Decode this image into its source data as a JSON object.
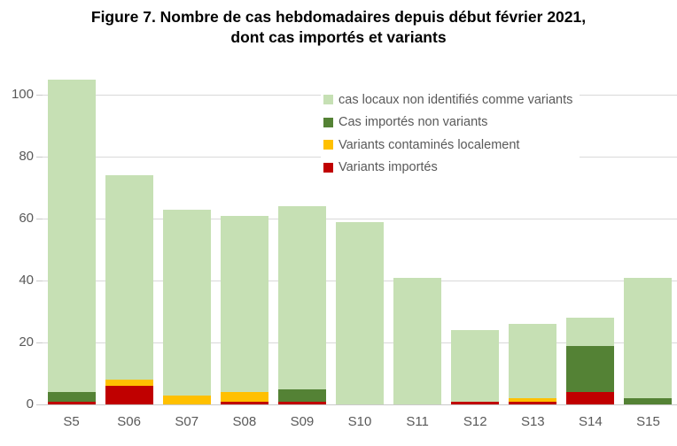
{
  "title": {
    "line1": "Figure 7. Nombre de cas hebdomadaires depuis début février 2021,",
    "line2": "dont cas importés et variants"
  },
  "colors": {
    "local_cases": "#c6e0b4",
    "imported_non_variant": "#548235",
    "variant_local": "#ffc000",
    "variant_imported": "#c00000",
    "gridline": "#d9d9d9",
    "axis_text": "#595959",
    "title_text": "#000000"
  },
  "chart_data": {
    "type": "bar",
    "stacked": true,
    "title": "Figure 7. Nombre de cas hebdomadaires depuis début février 2021, dont cas importés et variants",
    "categories": [
      "S5",
      "S06",
      "S07",
      "S08",
      "S09",
      "S10",
      "S11",
      "S12",
      "S13",
      "S14",
      "S15"
    ],
    "series": [
      {
        "name": "Variants importés",
        "color_key": "variant_imported",
        "values": [
          1,
          6,
          0,
          1,
          1,
          0,
          0,
          1,
          1,
          4,
          0
        ]
      },
      {
        "name": "Variants contaminés localement",
        "color_key": "variant_local",
        "values": [
          0,
          2,
          3,
          3,
          0,
          0,
          0,
          0,
          1,
          0,
          0
        ]
      },
      {
        "name": "Cas importés non variants",
        "color_key": "imported_non_variant",
        "values": [
          3,
          0,
          0,
          0,
          4,
          0,
          0,
          0,
          0,
          15,
          2
        ]
      },
      {
        "name": "cas locaux non identifiés comme variants",
        "color_key": "local_cases",
        "values": [
          101,
          66,
          60,
          57,
          59,
          59,
          41,
          23,
          24,
          9,
          39
        ]
      }
    ],
    "totals": [
      105,
      74,
      63,
      61,
      64,
      59,
      41,
      24,
      26,
      28,
      41
    ],
    "legend": [
      {
        "label": "cas locaux non identifiés comme variants",
        "color_key": "local_cases"
      },
      {
        "label": "Cas importés non variants",
        "color_key": "imported_non_variant"
      },
      {
        "label": "Variants contaminés localement",
        "color_key": "variant_local"
      },
      {
        "label": "Variants importés",
        "color_key": "variant_imported"
      }
    ],
    "xlabel": "",
    "ylabel": "",
    "ylim": [
      0,
      110
    ],
    "y_ticks": [
      0,
      20,
      40,
      60,
      80,
      100
    ],
    "grid": true,
    "legend_position": "inside-top-right"
  }
}
